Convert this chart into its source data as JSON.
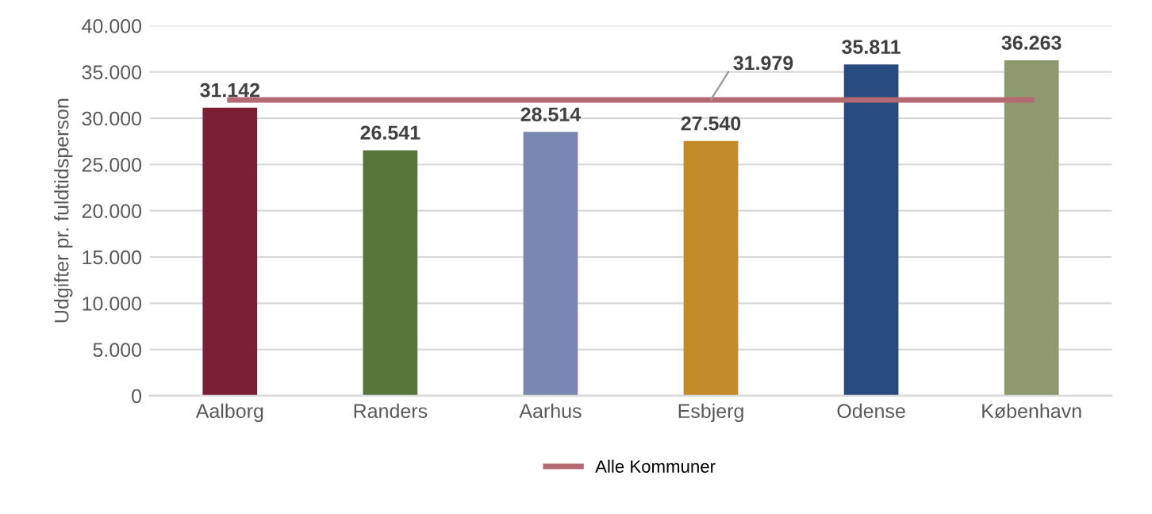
{
  "chart_data": {
    "type": "bar",
    "ylabel": "Udgifter pr. fuldtidsperson",
    "categories": [
      "Aalborg",
      "Randers",
      "Aarhus",
      "Esbjerg",
      "Odense",
      "København"
    ],
    "series": [
      {
        "colors": [
          "#7b1f35",
          "#56763a",
          "#7888b2",
          "#c38b28",
          "#274b7e",
          "#8c9a6d"
        ],
        "values": [
          31142,
          26541,
          28514,
          27540,
          35811,
          36263
        ],
        "value_labels": [
          "31.142",
          "26.541",
          "28.514",
          "27.540",
          "35.811",
          "36.263"
        ]
      },
      {
        "type": "line",
        "name": "Alle Kommuner",
        "color": "#b46a70",
        "values": [
          31979,
          31979,
          31979,
          31979,
          31979,
          31979
        ],
        "value_labels": [
          null,
          null,
          null,
          "31.979",
          null,
          null
        ]
      }
    ],
    "ylim": [
      0,
      40000
    ],
    "yticks": [
      {
        "value": 0,
        "label": "0"
      },
      {
        "value": 5000,
        "label": "5.000"
      },
      {
        "value": 10000,
        "label": "10.000"
      },
      {
        "value": 15000,
        "label": "15.000"
      },
      {
        "value": 20000,
        "label": "20.000"
      },
      {
        "value": 25000,
        "label": "25.000"
      },
      {
        "value": 30000,
        "label": "30.000"
      },
      {
        "value": 35000,
        "label": "35.000"
      },
      {
        "value": 40000,
        "label": "40.000"
      }
    ],
    "grid": "y",
    "legend": "bottom"
  }
}
